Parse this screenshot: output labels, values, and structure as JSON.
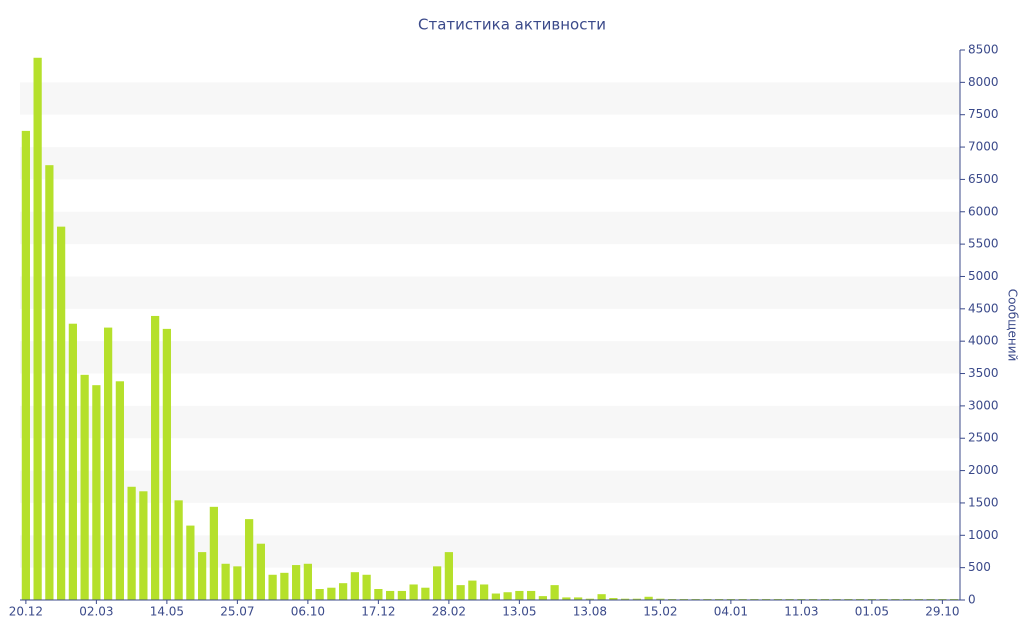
{
  "chart_data": {
    "type": "bar",
    "title": "Статистика активности",
    "y_label": "Сообщений",
    "y_axis_side": "right",
    "categories": [
      "20.12",
      null,
      null,
      null,
      null,
      null,
      "02.03",
      null,
      null,
      null,
      null,
      null,
      "14.05",
      null,
      null,
      null,
      null,
      null,
      "25.07",
      null,
      null,
      null,
      null,
      null,
      "06.10",
      null,
      null,
      null,
      null,
      null,
      "17.12",
      null,
      null,
      null,
      null,
      null,
      "28.02",
      null,
      null,
      null,
      null,
      null,
      "13.05",
      null,
      null,
      null,
      null,
      null,
      "13.08",
      null,
      null,
      null,
      null,
      null,
      "15.02",
      null,
      null,
      null,
      null,
      null,
      "04.01",
      null,
      null,
      null,
      null,
      null,
      "11.03",
      null,
      null,
      null,
      null,
      null,
      "01.05",
      null,
      null,
      null,
      null,
      null,
      "29.10",
      null
    ],
    "values": [
      7250,
      8380,
      6720,
      5770,
      4270,
      3480,
      3320,
      4210,
      3380,
      1750,
      1680,
      4390,
      4190,
      1540,
      1150,
      740,
      1440,
      560,
      520,
      1250,
      870,
      390,
      420,
      540,
      560,
      170,
      190,
      260,
      430,
      390,
      170,
      140,
      140,
      240,
      190,
      520,
      740,
      230,
      300,
      240,
      100,
      120,
      140,
      140,
      60,
      230,
      40,
      40,
      20,
      90,
      30,
      20,
      20,
      50,
      20,
      15,
      15,
      15,
      15,
      15,
      15,
      15,
      15,
      15,
      15,
      15,
      15,
      15,
      15,
      15,
      15,
      15,
      15,
      15,
      15,
      15,
      15,
      15,
      15,
      15
    ],
    "color": "#b5e02b",
    "ylim": [
      0,
      8500
    ],
    "yticks": [
      0,
      500,
      1000,
      1500,
      2000,
      2500,
      3000,
      3500,
      4000,
      4500,
      5000,
      5500,
      6000,
      6500,
      7000,
      7500,
      8000,
      8500
    ],
    "grid": "bands"
  }
}
